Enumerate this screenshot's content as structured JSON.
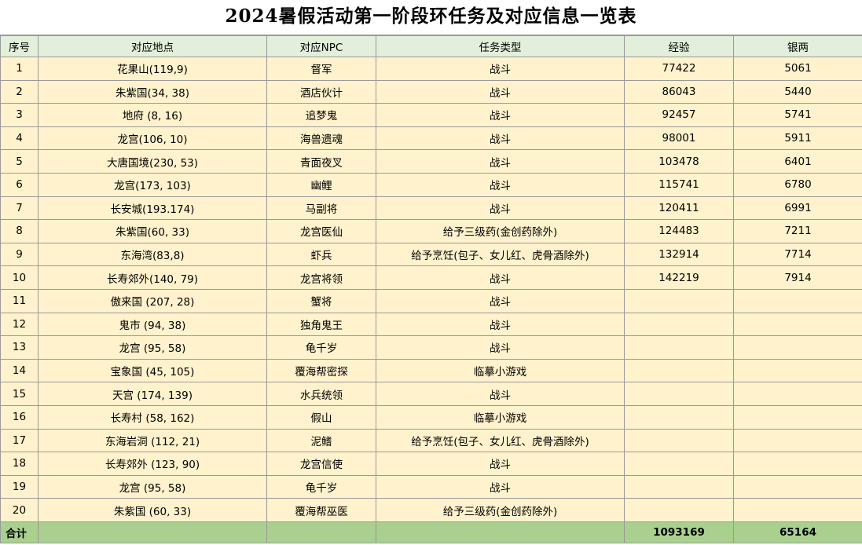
{
  "title": "2024暑假活动第一阶段环任务及对应信息一览表",
  "headers": [
    "序号",
    "对应地点",
    "对应NPC",
    "任务类型",
    "经验",
    "银两"
  ],
  "rows": [
    {
      "no": "1",
      "location": "花果山(119,9)",
      "npc": "督军",
      "task": "战斗",
      "exp": "77422",
      "silver": "5061"
    },
    {
      "no": "2",
      "location": "朱紫国(34, 38)",
      "npc": "酒店伙计",
      "task": "战斗",
      "exp": "86043",
      "silver": "5440"
    },
    {
      "no": "3",
      "location": "地府 (8, 16)",
      "npc": "追梦鬼",
      "task": "战斗",
      "exp": "92457",
      "silver": "5741"
    },
    {
      "no": "4",
      "location": "龙宫(106, 10)",
      "npc": "海兽遗魂",
      "task": "战斗",
      "exp": "98001",
      "silver": "5911"
    },
    {
      "no": "5",
      "location": "大唐国境(230, 53)",
      "npc": "青面夜叉",
      "task": "战斗",
      "exp": "103478",
      "silver": "6401"
    },
    {
      "no": "6",
      "location": "龙宫(173, 103)",
      "npc": "幽鲤",
      "task": "战斗",
      "exp": "115741",
      "silver": "6780"
    },
    {
      "no": "7",
      "location": "长安城(193.174)",
      "npc": "马副将",
      "task": "战斗",
      "exp": "120411",
      "silver": "6991"
    },
    {
      "no": "8",
      "location": "朱紫国(60, 33)",
      "npc": "龙宫医仙",
      "task": "给予三级药(金创药除外)",
      "exp": "124483",
      "silver": "7211"
    },
    {
      "no": "9",
      "location": "东海湾(83,8)",
      "npc": "虾兵",
      "task": "给予烹饪(包子、女儿红、虎骨酒除外)",
      "exp": "132914",
      "silver": "7714"
    },
    {
      "no": "10",
      "location": "长寿郊外(140, 79)",
      "npc": "龙宫将领",
      "task": "战斗",
      "exp": "142219",
      "silver": "7914"
    },
    {
      "no": "11",
      "location": "傲来国 (207, 28)",
      "npc": "蟹将",
      "task": "战斗",
      "exp": "",
      "silver": ""
    },
    {
      "no": "12",
      "location": "鬼市 (94, 38)",
      "npc": "独角鬼王",
      "task": "战斗",
      "exp": "",
      "silver": ""
    },
    {
      "no": "13",
      "location": "龙宫 (95, 58)",
      "npc": "龟千岁",
      "task": "战斗",
      "exp": "",
      "silver": ""
    },
    {
      "no": "14",
      "location": "宝象国 (45, 105)",
      "npc": "覆海帮密探",
      "task": "临摹小游戏",
      "exp": "",
      "silver": ""
    },
    {
      "no": "15",
      "location": "天宫 (174, 139)",
      "npc": "水兵统领",
      "task": "战斗",
      "exp": "",
      "silver": ""
    },
    {
      "no": "16",
      "location": "长寿村 (58, 162)",
      "npc": "假山",
      "task": "临摹小游戏",
      "exp": "",
      "silver": ""
    },
    {
      "no": "17",
      "location": "东海岩洞 (112, 21)",
      "npc": "泥鳍",
      "task": "给予烹饪(包子、女儿红、虎骨酒除外)",
      "exp": "",
      "silver": ""
    },
    {
      "no": "18",
      "location": "长寿郊外 (123, 90)",
      "npc": "龙宫信使",
      "task": "战斗",
      "exp": "",
      "silver": ""
    },
    {
      "no": "19",
      "location": "龙宫 (95, 58)",
      "npc": "龟千岁",
      "task": "战斗",
      "exp": "",
      "silver": ""
    },
    {
      "no": "20",
      "location": "朱紫国 (60, 33)",
      "npc": "覆海帮巫医",
      "task": "给予三级药(金创药除外)",
      "exp": "",
      "silver": ""
    }
  ],
  "total": {
    "label": "合计",
    "exp": "1093169",
    "silver": "65164"
  },
  "colors": {
    "header_bg": "#e2efda",
    "row_bg": "#fff2cc",
    "total_bg": "#a9d08e",
    "grid": "#9a9a9a"
  }
}
